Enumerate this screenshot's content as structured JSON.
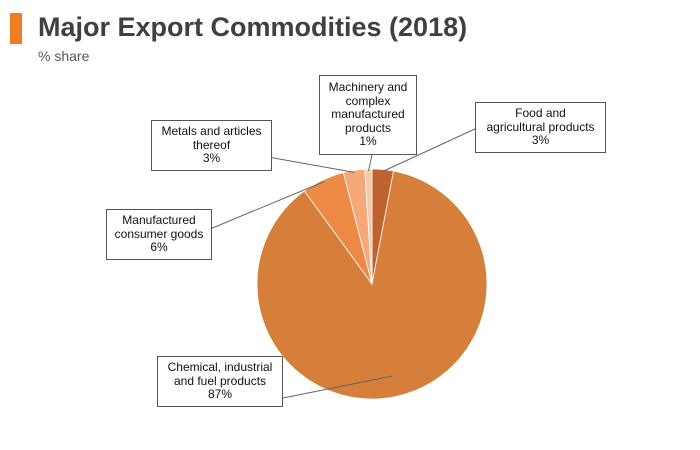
{
  "header": {
    "title": "Major Export Commodities (2018)",
    "subtitle": "% share",
    "accent_color": "#f07d22"
  },
  "chart_data": {
    "type": "pie",
    "title": "Major Export Commodities (2018)",
    "subtitle": "% share",
    "start_angle_deg": 0,
    "direction": "clockwise",
    "slices": [
      {
        "name": "Food and\nagricultural products",
        "value": 3,
        "label": "3%",
        "color": "#c0622d"
      },
      {
        "name": "Chemical, industrial\nand fuel products",
        "value": 87,
        "label": "87%",
        "color": "#d57f3a"
      },
      {
        "name": "Manufactured\nconsumer goods",
        "value": 6,
        "label": "6%",
        "color": "#ec8a45"
      },
      {
        "name": "Metals and articles\nthereof",
        "value": 3,
        "label": "3%",
        "color": "#f5a878"
      },
      {
        "name": "Machinery and\ncomplex\nmanufactured\nproducts",
        "value": 1,
        "label": "1%",
        "color": "#f7c8ab"
      }
    ]
  }
}
